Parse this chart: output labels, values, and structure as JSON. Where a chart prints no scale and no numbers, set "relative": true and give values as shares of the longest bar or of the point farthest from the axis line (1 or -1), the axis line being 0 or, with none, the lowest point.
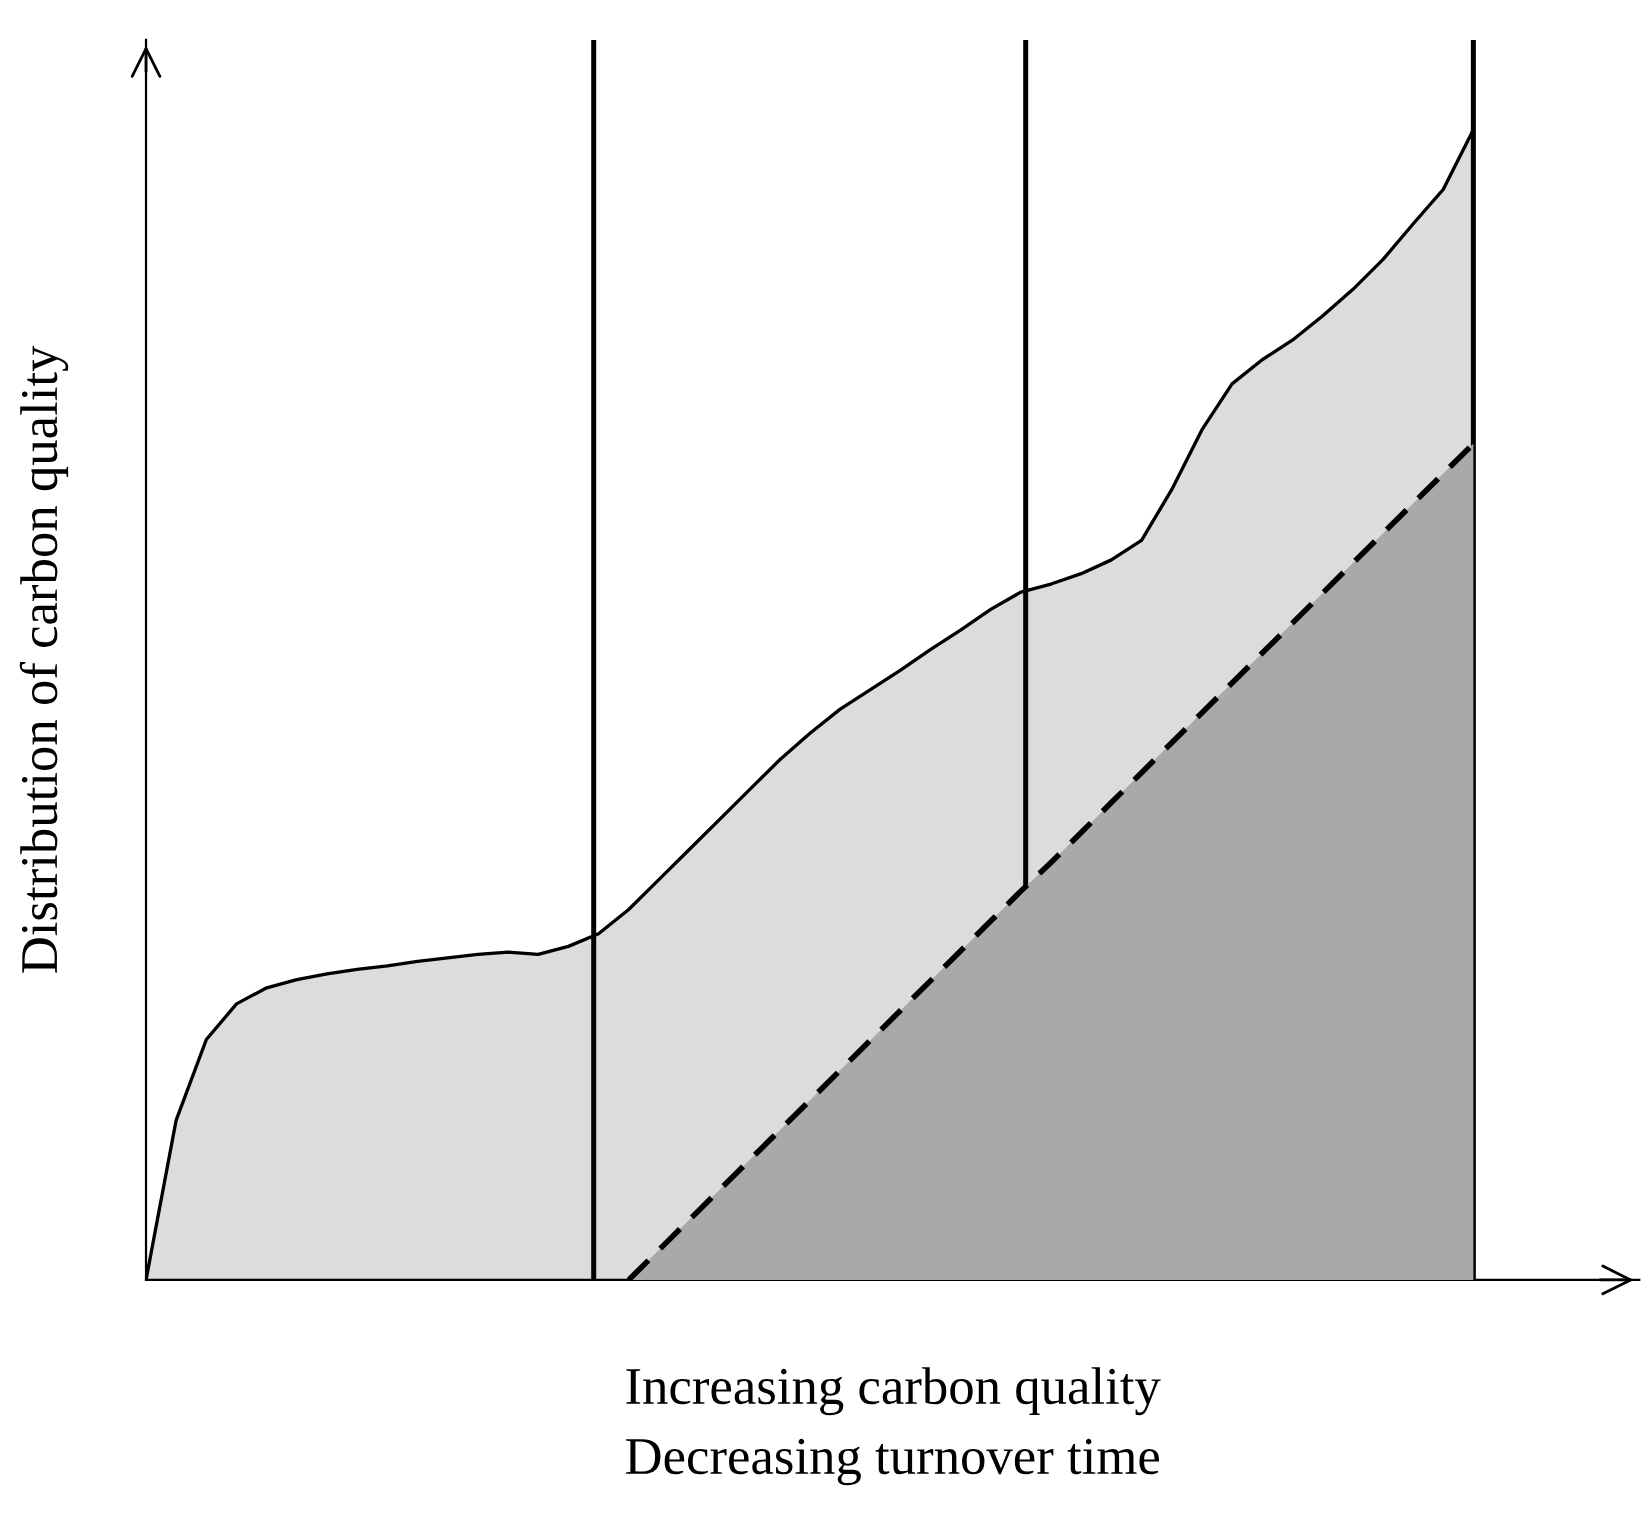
{
  "chart_data": {
    "type": "area",
    "relative": true,
    "xlabel": "Increasing carbon quality\nDecreasing turnover time",
    "ylabel": "Distribution of carbon quality",
    "categories": [
      null,
      null,
      null,
      null,
      null,
      null,
      null,
      null,
      null,
      null,
      null,
      null,
      null,
      null,
      null,
      null,
      null,
      null,
      null,
      null,
      null,
      null,
      null,
      null,
      null,
      null,
      null,
      null,
      null,
      null,
      null,
      null,
      null,
      null,
      null,
      null,
      null,
      null,
      null,
      null,
      null,
      null,
      null,
      null,
      null
    ],
    "series": [
      {
        "color": "#dcdcdc",
        "line_style": "solid",
        "values": [
          0,
          0.139,
          0.209,
          0.24,
          0.254,
          0.261,
          0.266,
          0.27,
          0.273,
          0.277,
          0.28,
          0.283,
          0.285,
          0.283,
          0.29,
          0.301,
          0.322,
          0.348,
          0.374,
          0.4,
          0.426,
          0.452,
          0.475,
          0.496,
          0.513,
          0.53,
          0.548,
          0.565,
          0.583,
          0.598,
          0.605,
          0.614,
          0.626,
          0.643,
          0.687,
          0.739,
          0.779,
          0.8,
          0.817,
          0.838,
          0.861,
          0.887,
          0.918,
          0.948,
          1
        ]
      },
      {
        "color": "#a8a9ab",
        "line_style": "dashed",
        "values": [
          null,
          null,
          null,
          null,
          null,
          null,
          null,
          null,
          null,
          null,
          null,
          null,
          null,
          null,
          null,
          null,
          0,
          0.026,
          0.052,
          0.078,
          0.104,
          0.13,
          0.156,
          0.182,
          0.208,
          0.234,
          0.26,
          0.286,
          0.312,
          0.338,
          0.363,
          0.389,
          0.415,
          0.441,
          0.467,
          0.493,
          0.519,
          0.545,
          0.571,
          0.597,
          0.623,
          0.649,
          0.675,
          0.701,
          0.727
        ]
      }
    ],
    "grid": "x",
    "legend": false
  }
}
